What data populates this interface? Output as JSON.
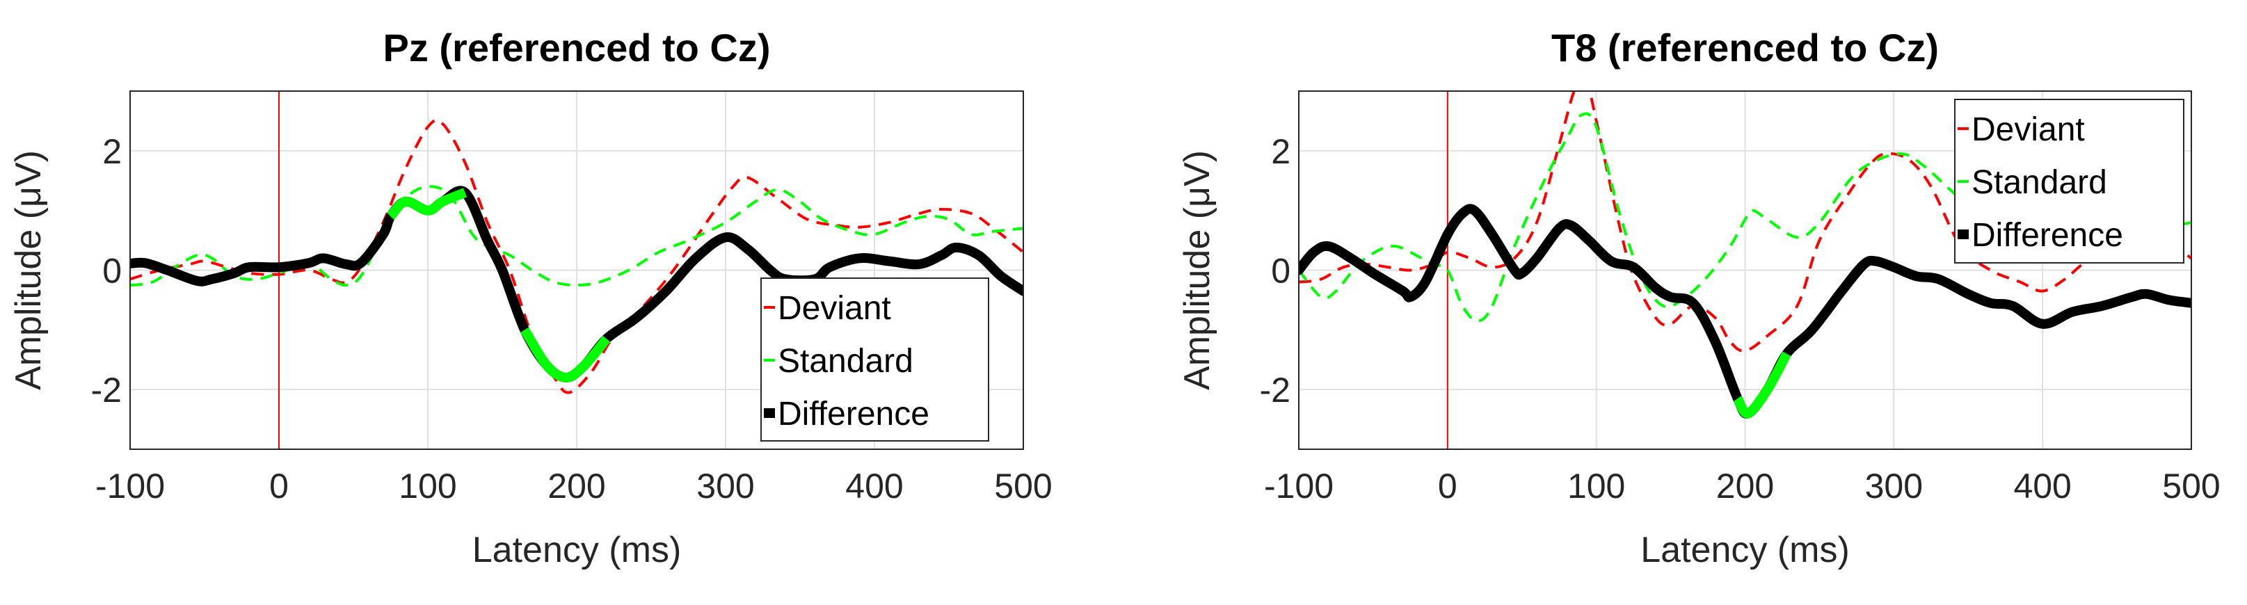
{
  "chart_data": [
    {
      "type": "line",
      "title": "Pz (referenced to Cz)",
      "xlabel": "Latency (ms)",
      "ylabel": "Amplitude (μV)",
      "xlim": [
        -100,
        500
      ],
      "ylim": [
        -3,
        3
      ],
      "xticks": [
        "-100",
        "0",
        "100",
        "200",
        "300",
        "400",
        "500"
      ],
      "yticks": [
        "-2",
        "0",
        "2"
      ],
      "grid": true,
      "stimulus_onset": 0,
      "legend_position": "bottom-right",
      "series": [
        {
          "name": "Deviant",
          "color": "#ff0000",
          "style": "dashed",
          "points": [
            [
              -100,
              -0.15
            ],
            [
              -80,
              0.0
            ],
            [
              -60,
              0.1
            ],
            [
              -50,
              0.15
            ],
            [
              -35,
              0.05
            ],
            [
              -20,
              -0.05
            ],
            [
              0,
              -0.07
            ],
            [
              20,
              0.0
            ],
            [
              35,
              -0.15
            ],
            [
              45,
              -0.2
            ],
            [
              55,
              0.05
            ],
            [
              70,
              0.8
            ],
            [
              85,
              1.7
            ],
            [
              100,
              2.4
            ],
            [
              110,
              2.45
            ],
            [
              125,
              1.8
            ],
            [
              140,
              0.8
            ],
            [
              155,
              0.0
            ],
            [
              170,
              -1.1
            ],
            [
              185,
              -1.8
            ],
            [
              195,
              -2.05
            ],
            [
              210,
              -1.7
            ],
            [
              225,
              -1.1
            ],
            [
              245,
              -0.6
            ],
            [
              265,
              0.0
            ],
            [
              290,
              0.9
            ],
            [
              305,
              1.4
            ],
            [
              315,
              1.55
            ],
            [
              335,
              1.2
            ],
            [
              355,
              0.85
            ],
            [
              375,
              0.75
            ],
            [
              390,
              0.72
            ],
            [
              410,
              0.8
            ],
            [
              430,
              0.95
            ],
            [
              445,
              1.02
            ],
            [
              465,
              0.95
            ],
            [
              480,
              0.7
            ],
            [
              500,
              0.3
            ]
          ]
        },
        {
          "name": "Standard",
          "color": "#00ff00",
          "style": "dashed",
          "points": [
            [
              -100,
              -0.25
            ],
            [
              -85,
              -0.2
            ],
            [
              -70,
              0.05
            ],
            [
              -55,
              0.25
            ],
            [
              -45,
              0.2
            ],
            [
              -30,
              -0.1
            ],
            [
              -15,
              -0.15
            ],
            [
              0,
              -0.05
            ],
            [
              20,
              0.1
            ],
            [
              35,
              -0.15
            ],
            [
              45,
              -0.25
            ],
            [
              55,
              -0.1
            ],
            [
              70,
              0.6
            ],
            [
              85,
              1.2
            ],
            [
              100,
              1.4
            ],
            [
              115,
              1.25
            ],
            [
              130,
              0.6
            ],
            [
              140,
              0.4
            ],
            [
              155,
              0.25
            ],
            [
              170,
              0.0
            ],
            [
              185,
              -0.2
            ],
            [
              200,
              -0.25
            ],
            [
              215,
              -0.2
            ],
            [
              235,
              0.0
            ],
            [
              255,
              0.3
            ],
            [
              275,
              0.5
            ],
            [
              300,
              0.8
            ],
            [
              320,
              1.15
            ],
            [
              335,
              1.35
            ],
            [
              350,
              1.15
            ],
            [
              365,
              0.85
            ],
            [
              385,
              0.65
            ],
            [
              400,
              0.6
            ],
            [
              420,
              0.8
            ],
            [
              435,
              0.9
            ],
            [
              450,
              0.85
            ],
            [
              465,
              0.6
            ],
            [
              480,
              0.65
            ],
            [
              500,
              0.7
            ]
          ]
        },
        {
          "name": "Difference",
          "color": "#000000",
          "style": "solid",
          "significant_color": "#00ff00",
          "significant_ranges": [
            [
              75,
              125
            ],
            [
              165,
              220
            ]
          ],
          "points": [
            [
              -100,
              0.11
            ],
            [
              -90,
              0.12
            ],
            [
              -75,
              0.0
            ],
            [
              -55,
              -0.18
            ],
            [
              -45,
              -0.15
            ],
            [
              -30,
              -0.05
            ],
            [
              -20,
              0.05
            ],
            [
              0,
              0.05
            ],
            [
              20,
              0.12
            ],
            [
              30,
              0.2
            ],
            [
              45,
              0.1
            ],
            [
              55,
              0.12
            ],
            [
              70,
              0.6
            ],
            [
              75,
              0.9
            ],
            [
              85,
              1.15
            ],
            [
              100,
              1.0
            ],
            [
              110,
              1.15
            ],
            [
              125,
              1.3
            ],
            [
              140,
              0.5
            ],
            [
              150,
              0.0
            ],
            [
              165,
              -1.0
            ],
            [
              180,
              -1.6
            ],
            [
              193,
              -1.8
            ],
            [
              205,
              -1.6
            ],
            [
              220,
              -1.15
            ],
            [
              240,
              -0.8
            ],
            [
              260,
              -0.35
            ],
            [
              280,
              0.2
            ],
            [
              300,
              0.55
            ],
            [
              315,
              0.35
            ],
            [
              330,
              0.0
            ],
            [
              340,
              -0.15
            ],
            [
              360,
              -0.15
            ],
            [
              370,
              0.05
            ],
            [
              390,
              0.2
            ],
            [
              410,
              0.15
            ],
            [
              430,
              0.1
            ],
            [
              445,
              0.25
            ],
            [
              455,
              0.38
            ],
            [
              470,
              0.25
            ],
            [
              485,
              -0.1
            ],
            [
              500,
              -0.35
            ]
          ]
        }
      ]
    },
    {
      "type": "line",
      "title": "T8 (referenced to Cz)",
      "xlabel": "Latency (ms)",
      "ylabel": "Amplitude (μV)",
      "xlim": [
        -100,
        500
      ],
      "ylim": [
        -3,
        3
      ],
      "xticks": [
        "-100",
        "0",
        "100",
        "200",
        "300",
        "400",
        "500"
      ],
      "yticks": [
        "-2",
        "0",
        "2"
      ],
      "grid": true,
      "stimulus_onset": 0,
      "legend_position": "top-right",
      "series": [
        {
          "name": "Deviant",
          "color": "#ff0000",
          "style": "dashed",
          "points": [
            [
              -100,
              -0.2
            ],
            [
              -85,
              -0.15
            ],
            [
              -70,
              0.05
            ],
            [
              -55,
              0.1
            ],
            [
              -40,
              0.05
            ],
            [
              -25,
              0.0
            ],
            [
              -10,
              0.1
            ],
            [
              0,
              0.3
            ],
            [
              15,
              0.2
            ],
            [
              30,
              0.05
            ],
            [
              45,
              0.2
            ],
            [
              60,
              0.8
            ],
            [
              75,
              2.1
            ],
            [
              85,
              3.0
            ],
            [
              92,
              3.3
            ],
            [
              100,
              2.5
            ],
            [
              115,
              0.8
            ],
            [
              125,
              -0.1
            ],
            [
              140,
              -0.8
            ],
            [
              150,
              -0.9
            ],
            [
              165,
              -0.6
            ],
            [
              180,
              -0.8
            ],
            [
              190,
              -1.2
            ],
            [
              200,
              -1.35
            ],
            [
              215,
              -1.1
            ],
            [
              235,
              -0.6
            ],
            [
              250,
              0.5
            ],
            [
              270,
              1.3
            ],
            [
              285,
              1.8
            ],
            [
              295,
              1.95
            ],
            [
              310,
              1.85
            ],
            [
              325,
              1.4
            ],
            [
              345,
              0.4
            ],
            [
              365,
              0.0
            ],
            [
              385,
              -0.2
            ],
            [
              400,
              -0.35
            ],
            [
              415,
              -0.15
            ],
            [
              430,
              0.15
            ],
            [
              450,
              0.3
            ],
            [
              470,
              0.45
            ],
            [
              490,
              0.35
            ],
            [
              500,
              0.2
            ]
          ]
        },
        {
          "name": "Standard",
          "color": "#00ff00",
          "style": "dashed",
          "points": [
            [
              -100,
              0.0
            ],
            [
              -85,
              -0.45
            ],
            [
              -75,
              -0.35
            ],
            [
              -60,
              0.1
            ],
            [
              -45,
              0.35
            ],
            [
              -35,
              0.4
            ],
            [
              -25,
              0.3
            ],
            [
              -10,
              0.1
            ],
            [
              0,
              0.0
            ],
            [
              10,
              -0.6
            ],
            [
              20,
              -0.85
            ],
            [
              30,
              -0.6
            ],
            [
              45,
              0.4
            ],
            [
              65,
              1.5
            ],
            [
              80,
              2.2
            ],
            [
              90,
              2.6
            ],
            [
              100,
              2.4
            ],
            [
              115,
              1.0
            ],
            [
              130,
              -0.1
            ],
            [
              145,
              -0.6
            ],
            [
              160,
              -0.45
            ],
            [
              175,
              -0.1
            ],
            [
              190,
              0.4
            ],
            [
              200,
              0.85
            ],
            [
              205,
              1.0
            ],
            [
              215,
              0.85
            ],
            [
              235,
              0.55
            ],
            [
              250,
              0.8
            ],
            [
              270,
              1.5
            ],
            [
              285,
              1.8
            ],
            [
              305,
              1.95
            ],
            [
              320,
              1.75
            ],
            [
              340,
              1.3
            ],
            [
              360,
              0.9
            ],
            [
              380,
              0.6
            ],
            [
              400,
              0.55
            ],
            [
              420,
              0.5
            ],
            [
              450,
              0.6
            ],
            [
              480,
              0.7
            ],
            [
              500,
              0.8
            ]
          ]
        },
        {
          "name": "Difference",
          "color": "#000000",
          "style": "solid",
          "significant_color": "#00ff00",
          "significant_ranges": [
            [
              195,
              228
            ]
          ],
          "points": [
            [
              -100,
              0.0
            ],
            [
              -90,
              0.3
            ],
            [
              -80,
              0.4
            ],
            [
              -65,
              0.2
            ],
            [
              -50,
              -0.05
            ],
            [
              -30,
              -0.35
            ],
            [
              -25,
              -0.45
            ],
            [
              -15,
              -0.2
            ],
            [
              0,
              0.6
            ],
            [
              10,
              0.95
            ],
            [
              18,
              1.0
            ],
            [
              30,
              0.6
            ],
            [
              45,
              0.0
            ],
            [
              50,
              -0.05
            ],
            [
              60,
              0.2
            ],
            [
              75,
              0.7
            ],
            [
              83,
              0.75
            ],
            [
              95,
              0.5
            ],
            [
              110,
              0.15
            ],
            [
              125,
              0.05
            ],
            [
              140,
              -0.3
            ],
            [
              150,
              -0.45
            ],
            [
              165,
              -0.55
            ],
            [
              180,
              -1.2
            ],
            [
              195,
              -2.15
            ],
            [
              202,
              -2.4
            ],
            [
              215,
              -2.0
            ],
            [
              228,
              -1.4
            ],
            [
              245,
              -1.0
            ],
            [
              265,
              -0.35
            ],
            [
              280,
              0.1
            ],
            [
              288,
              0.15
            ],
            [
              300,
              0.05
            ],
            [
              315,
              -0.1
            ],
            [
              330,
              -0.15
            ],
            [
              350,
              -0.4
            ],
            [
              365,
              -0.55
            ],
            [
              380,
              -0.6
            ],
            [
              400,
              -0.9
            ],
            [
              420,
              -0.7
            ],
            [
              440,
              -0.6
            ],
            [
              460,
              -0.45
            ],
            [
              470,
              -0.4
            ],
            [
              485,
              -0.5
            ],
            [
              500,
              -0.55
            ]
          ]
        }
      ]
    }
  ]
}
